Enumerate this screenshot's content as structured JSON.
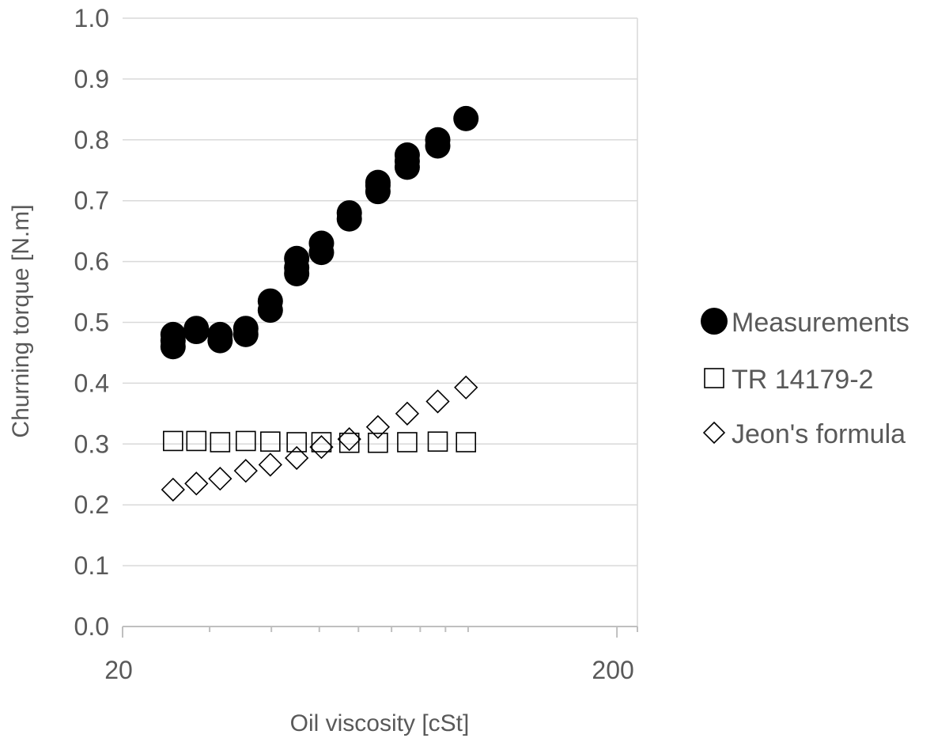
{
  "chart_data": {
    "type": "scatter",
    "title": "",
    "xlabel": "Oil viscosity [cSt]",
    "ylabel": "Churning torque [N.m]",
    "x_scale": "log",
    "xlim": [
      20,
      220
    ],
    "ylim": [
      0,
      1
    ],
    "x_major_ticks": [
      20,
      200
    ],
    "x_tick_labels": [
      "20",
      "200"
    ],
    "x_minor_ticks": [
      30,
      40,
      50,
      60,
      70,
      80,
      90,
      100
    ],
    "y_ticks": [
      0,
      0.1,
      0.2,
      0.3,
      0.4,
      0.5,
      0.6,
      0.7,
      0.8,
      0.9,
      1.0
    ],
    "y_tick_labels": [
      "0.0",
      "0.1",
      "0.2",
      "0.3",
      "0.4",
      "0.5",
      "0.6",
      "0.7",
      "0.8",
      "0.9",
      "1.0"
    ],
    "grid": "horizontal",
    "legend_position": "right",
    "series": [
      {
        "name": "Measurements",
        "marker": "filled-circle",
        "color": "#000000",
        "points": [
          [
            25.3,
            0.46
          ],
          [
            25.3,
            0.47
          ],
          [
            25.3,
            0.48
          ],
          [
            28.2,
            0.485
          ],
          [
            28.2,
            0.49
          ],
          [
            31.5,
            0.47
          ],
          [
            31.5,
            0.48
          ],
          [
            35.5,
            0.48
          ],
          [
            35.5,
            0.49
          ],
          [
            39.8,
            0.52
          ],
          [
            39.8,
            0.535
          ],
          [
            45.0,
            0.58
          ],
          [
            45.0,
            0.59
          ],
          [
            45.0,
            0.605
          ],
          [
            50.5,
            0.615
          ],
          [
            50.5,
            0.63
          ],
          [
            57.5,
            0.67
          ],
          [
            57.5,
            0.68
          ],
          [
            65.7,
            0.715
          ],
          [
            65.7,
            0.725
          ],
          [
            65.7,
            0.73
          ],
          [
            75.3,
            0.755
          ],
          [
            75.3,
            0.765
          ],
          [
            75.3,
            0.775
          ],
          [
            86.8,
            0.79
          ],
          [
            86.8,
            0.8
          ],
          [
            99.0,
            0.835
          ]
        ]
      },
      {
        "name": "TR 14179-2",
        "marker": "open-square",
        "color": "#000000",
        "points": [
          [
            25.3,
            0.305
          ],
          [
            28.2,
            0.305
          ],
          [
            31.5,
            0.303
          ],
          [
            35.5,
            0.305
          ],
          [
            39.8,
            0.304
          ],
          [
            45.0,
            0.303
          ],
          [
            50.5,
            0.303
          ],
          [
            57.5,
            0.302
          ],
          [
            65.7,
            0.302
          ],
          [
            75.3,
            0.303
          ],
          [
            86.8,
            0.304
          ],
          [
            99.0,
            0.303
          ]
        ]
      },
      {
        "name": "Jeon's formula",
        "marker": "open-diamond",
        "color": "#000000",
        "points": [
          [
            25.3,
            0.225
          ],
          [
            28.2,
            0.235
          ],
          [
            31.5,
            0.243
          ],
          [
            35.5,
            0.256
          ],
          [
            39.8,
            0.266
          ],
          [
            45.0,
            0.277
          ],
          [
            50.5,
            0.295
          ],
          [
            57.5,
            0.308
          ],
          [
            65.7,
            0.328
          ],
          [
            75.3,
            0.35
          ],
          [
            86.8,
            0.37
          ],
          [
            99.0,
            0.393
          ]
        ]
      }
    ]
  }
}
